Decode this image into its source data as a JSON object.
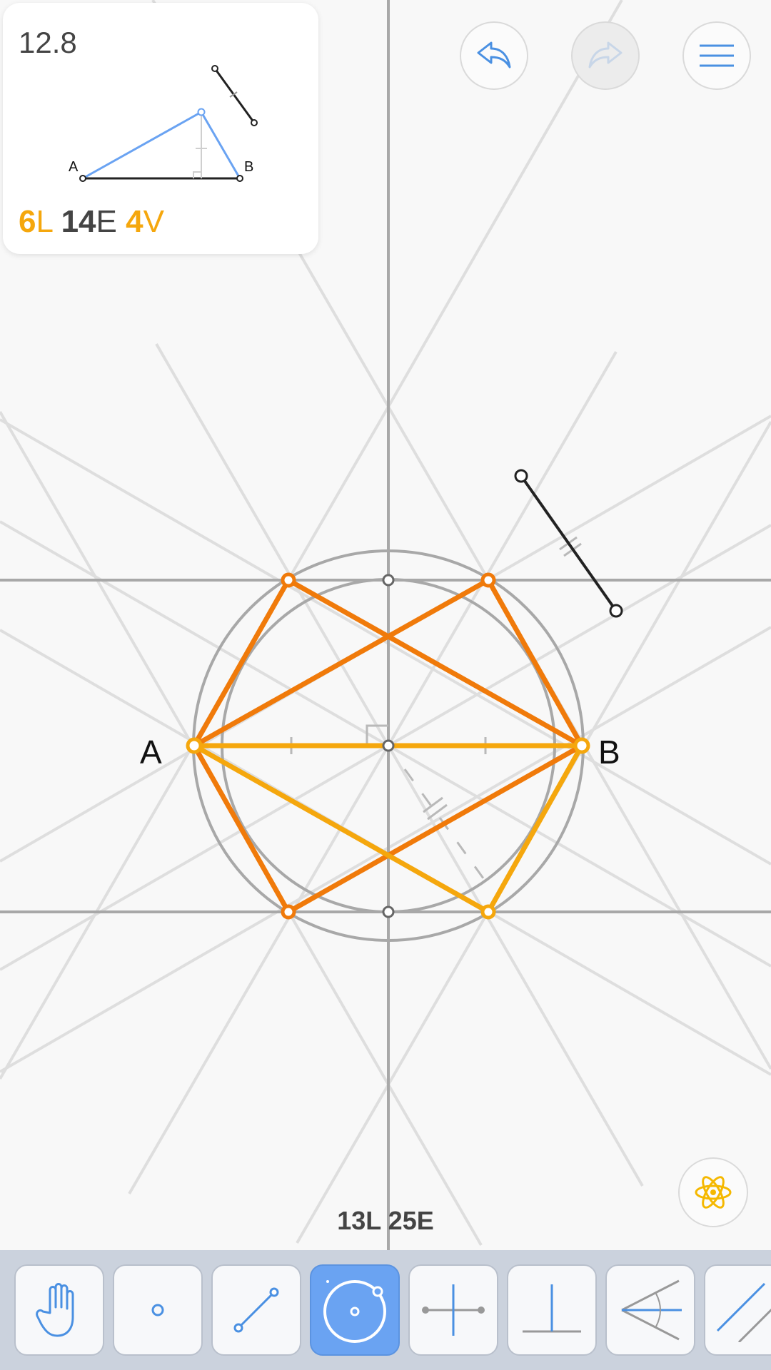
{
  "level": {
    "number": "12.8"
  },
  "goals": [
    {
      "value": "6",
      "unit": "L",
      "color": "#f5a70d"
    },
    {
      "value": "14",
      "unit": "E",
      "color": "#444444"
    },
    {
      "value": "4",
      "unit": "V",
      "color": "#f5a70d"
    }
  ],
  "preview": {
    "point_a": "A",
    "point_b": "B"
  },
  "canvas": {
    "point_a": "A",
    "point_b": "B"
  },
  "counter": {
    "lines": "13L",
    "elementary": "25E"
  },
  "header_buttons": [
    {
      "name": "undo-button",
      "icon": "undo-arrow-icon",
      "enabled": true
    },
    {
      "name": "redo-button",
      "icon": "redo-arrow-icon",
      "enabled": false
    },
    {
      "name": "menu-button",
      "icon": "hamburger-menu-icon",
      "enabled": true
    }
  ],
  "hint_button": {
    "icon": "atom-icon",
    "color": "#f5b800"
  },
  "toolbar": {
    "tools": [
      {
        "name": "tool-move",
        "icon": "hand-icon",
        "active": false
      },
      {
        "name": "tool-point",
        "icon": "point-icon",
        "active": false
      },
      {
        "name": "tool-line",
        "icon": "line-icon",
        "active": false
      },
      {
        "name": "tool-circle",
        "icon": "circle-icon",
        "active": true
      },
      {
        "name": "tool-perpendicular-bisector",
        "icon": "perpendicular-bisector-icon",
        "active": false
      },
      {
        "name": "tool-perpendicular",
        "icon": "perpendicular-icon",
        "active": false
      },
      {
        "name": "tool-angle-bisector",
        "icon": "angle-bisector-icon",
        "active": false
      },
      {
        "name": "tool-parallel",
        "icon": "parallel-icon",
        "active": false
      }
    ]
  },
  "colors": {
    "construction_line": "#dedede",
    "axis_line": "#a8a8a8",
    "circle": "#a8a8a8",
    "orange": "#f07a0a",
    "yellow": "#f5a70d",
    "accent_blue": "#4a90e2"
  }
}
